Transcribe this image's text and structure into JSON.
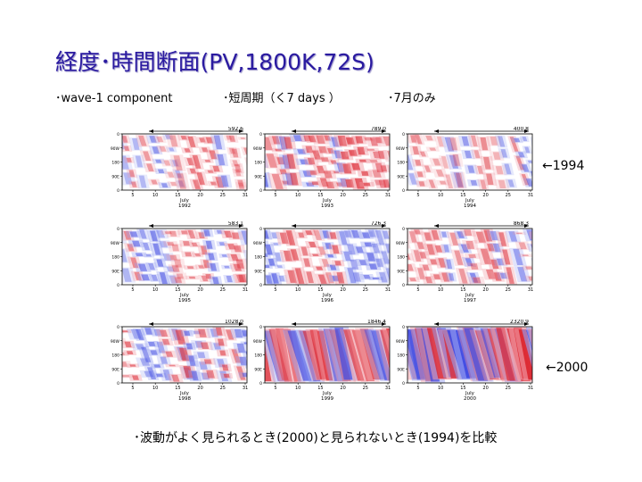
{
  "slide": {
    "title": "経度･時間断面(PV,1800K,72S)",
    "bullets": [
      "･wave-1 component",
      "･短周期（く7 days ）",
      "･7月のみ"
    ],
    "marker_1994": "←1994",
    "marker_2000": "←2000",
    "caption": "･波動がよく見られるとき(2000)と見られないとき(1994)を比較"
  },
  "panels": [
    {
      "value": "592.6",
      "year": "1992",
      "month": "July",
      "intensity": 0.35,
      "red_bias": 0.6
    },
    {
      "value": "789.0",
      "year": "1993",
      "month": "July",
      "intensity": 0.55,
      "red_bias": 0.75
    },
    {
      "value": "400.8",
      "year": "1994",
      "month": "July",
      "intensity": 0.25,
      "red_bias": 0.5
    },
    {
      "value": "583.1",
      "year": "1995",
      "month": "July",
      "intensity": 0.4,
      "red_bias": 0.6
    },
    {
      "value": "726.3",
      "year": "1996",
      "month": "July",
      "intensity": 0.45,
      "red_bias": 0.55
    },
    {
      "value": "868.3",
      "year": "1997",
      "month": "July",
      "intensity": 0.4,
      "red_bias": 0.6
    },
    {
      "value": "1028.0",
      "year": "1998",
      "month": "July",
      "intensity": 0.5,
      "red_bias": 0.45
    },
    {
      "value": "1846.4",
      "year": "1999",
      "month": "July",
      "intensity": 0.8,
      "red_bias": 0.5
    },
    {
      "value": "2320.9",
      "year": "2000",
      "month": "July",
      "intensity": 1.0,
      "red_bias": 0.5
    }
  ],
  "axis": {
    "y_ticks": [
      "0",
      "90E",
      "180",
      "90W",
      "0"
    ],
    "x_ticks": [
      "5",
      "10",
      "15",
      "20",
      "25",
      "31"
    ]
  }
}
